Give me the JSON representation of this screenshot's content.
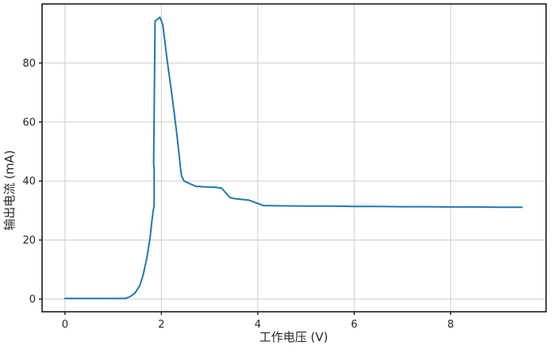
{
  "chart_data": {
    "type": "line",
    "title": "",
    "xlabel": "工作电压 (V)",
    "ylabel": "输出电流 (mA)",
    "xlim": [
      -0.475,
      9.98
    ],
    "ylim": [
      -4.3,
      100
    ],
    "xticks": [
      0,
      2,
      4,
      6,
      8
    ],
    "yticks": [
      0,
      20,
      40,
      60,
      80
    ],
    "grid": true,
    "legend": "none",
    "colors": {
      "line": "#1f77b4",
      "grid": "#cdcdcd",
      "spine": "#1a1a1a",
      "tick_text": "#262626",
      "background": "#ffffff"
    },
    "series": [
      {
        "name": "输出电流",
        "points": [
          [
            0,
            0.2
          ],
          [
            0.3,
            0.2
          ],
          [
            0.6,
            0.2
          ],
          [
            0.9,
            0.2
          ],
          [
            1.1,
            0.2
          ],
          [
            1.25,
            0.2
          ],
          [
            1.35,
            0.8
          ],
          [
            1.45,
            2
          ],
          [
            1.55,
            4.5
          ],
          [
            1.62,
            8
          ],
          [
            1.7,
            14
          ],
          [
            1.76,
            20
          ],
          [
            1.8,
            26
          ],
          [
            1.83,
            30
          ],
          [
            1.85,
            31.5
          ],
          [
            1.85,
            44
          ],
          [
            1.84,
            46
          ],
          [
            1.87,
            94.2
          ],
          [
            1.97,
            95.5
          ],
          [
            2.03,
            93
          ],
          [
            2.12,
            81
          ],
          [
            2.22,
            69
          ],
          [
            2.32,
            56
          ],
          [
            2.4,
            44
          ],
          [
            2.42,
            41.6
          ],
          [
            2.47,
            40
          ],
          [
            2.6,
            39
          ],
          [
            2.72,
            38.2
          ],
          [
            2.9,
            38
          ],
          [
            3.1,
            37.9
          ],
          [
            3.25,
            37.6
          ],
          [
            3.42,
            34.4
          ],
          [
            3.5,
            34.1
          ],
          [
            3.65,
            33.8
          ],
          [
            3.82,
            33.5
          ],
          [
            4.11,
            31.7
          ],
          [
            4.5,
            31.6
          ],
          [
            5.0,
            31.5
          ],
          [
            5.5,
            31.5
          ],
          [
            6.0,
            31.4
          ],
          [
            6.5,
            31.4
          ],
          [
            7.0,
            31.3
          ],
          [
            7.5,
            31.3
          ],
          [
            8.0,
            31.2
          ],
          [
            8.5,
            31.2
          ],
          [
            9.0,
            31.1
          ],
          [
            9.48,
            31.1
          ]
        ]
      }
    ]
  }
}
